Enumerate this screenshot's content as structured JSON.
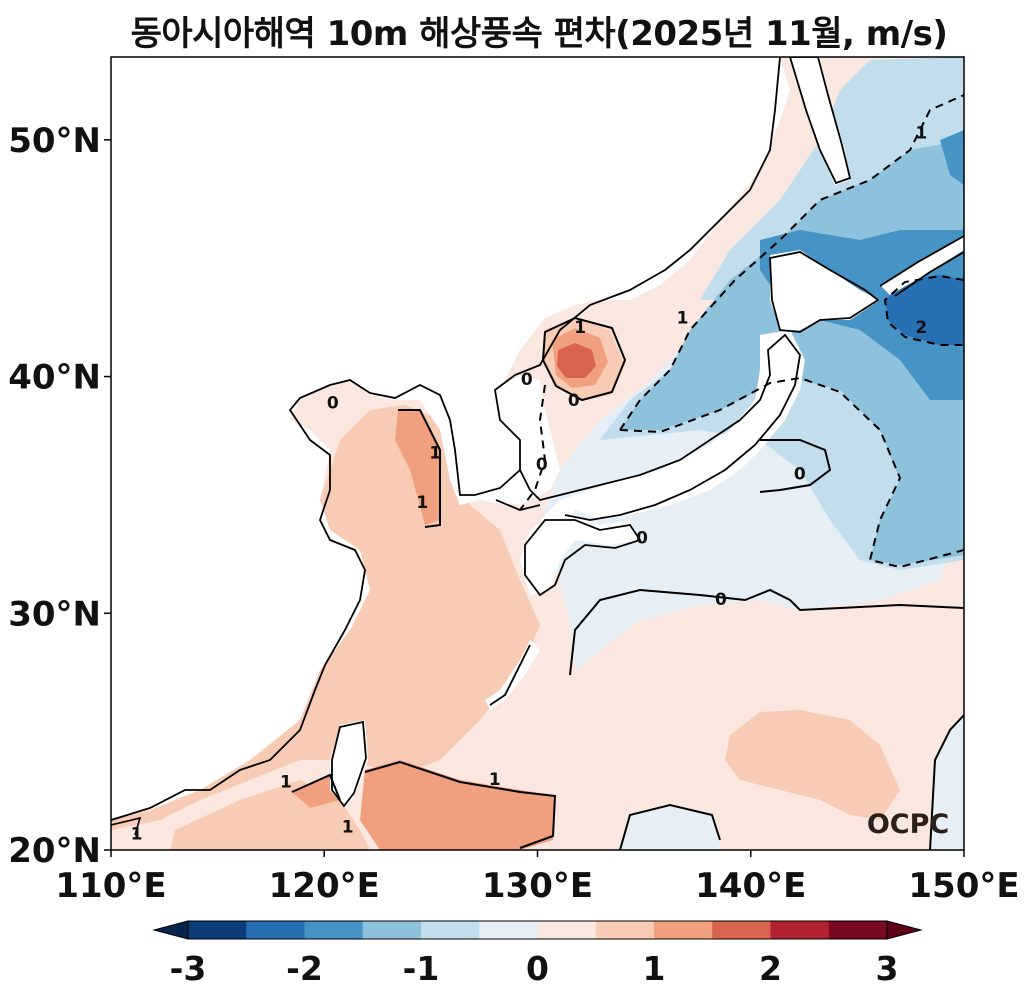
{
  "title": "동아시아해역 10m 해상풍속 편차(2025년 11월, m/s)",
  "map": {
    "lon_range": [
      110,
      150
    ],
    "lat_range": [
      20,
      53.5
    ],
    "lon_ticks": [
      {
        "value": 110,
        "label": "110°E"
      },
      {
        "value": 120,
        "label": "120°E"
      },
      {
        "value": 130,
        "label": "130°E"
      },
      {
        "value": 140,
        "label": "140°E"
      },
      {
        "value": 150,
        "label": "150°E"
      }
    ],
    "lat_ticks": [
      {
        "value": 20,
        "label": "20°N"
      },
      {
        "value": 30,
        "label": "30°N"
      },
      {
        "value": 40,
        "label": "40°N"
      },
      {
        "value": 50,
        "label": "50°N"
      }
    ],
    "contour_labels": [
      {
        "text": "0",
        "lon": 120.4,
        "lat": 38.9
      },
      {
        "text": "1",
        "lon": 125.2,
        "lat": 36.8
      },
      {
        "text": "1",
        "lon": 124.6,
        "lat": 34.7
      },
      {
        "text": "0",
        "lon": 129.5,
        "lat": 39.9
      },
      {
        "text": "1",
        "lon": 132.0,
        "lat": 42.1
      },
      {
        "text": "0",
        "lon": 131.7,
        "lat": 39.0
      },
      {
        "text": "0",
        "lon": 130.2,
        "lat": 36.3
      },
      {
        "text": "1",
        "lon": 136.8,
        "lat": 42.5
      },
      {
        "text": "1",
        "lon": 148.0,
        "lat": 50.3
      },
      {
        "text": "2",
        "lon": 148.0,
        "lat": 42.1
      },
      {
        "text": "0",
        "lon": 142.3,
        "lat": 35.9
      },
      {
        "text": "0",
        "lon": 134.9,
        "lat": 33.2
      },
      {
        "text": "0",
        "lon": 138.6,
        "lat": 30.6
      },
      {
        "text": "1",
        "lon": 128.0,
        "lat": 23.0
      },
      {
        "text": "1",
        "lon": 118.2,
        "lat": 22.9
      },
      {
        "text": "1",
        "lon": 121.1,
        "lat": 21.0
      },
      {
        "text": "1",
        "lon": 111.2,
        "lat": 20.7
      }
    ],
    "watermark": "OCPC"
  },
  "colorbar": {
    "levels": [
      -3,
      -2.5,
      -2,
      -1.5,
      -1,
      -0.5,
      0,
      0.5,
      1,
      1.5,
      2,
      2.5,
      3
    ],
    "colors": [
      "#0b3c78",
      "#2870b4",
      "#4694c6",
      "#8ec1dc",
      "#c2ddec",
      "#e6eff5",
      "#fae8e0",
      "#f8cbb4",
      "#f0a07f",
      "#d8634e",
      "#b3222f",
      "#7a0a21"
    ],
    "under_color": "#06254d",
    "over_color": "#5e0215",
    "tick_labels": [
      {
        "value": -3,
        "label": "-3"
      },
      {
        "value": -2,
        "label": "-2"
      },
      {
        "value": -1,
        "label": "-1"
      },
      {
        "value": 0,
        "label": "0"
      },
      {
        "value": 1,
        "label": "1"
      },
      {
        "value": 2,
        "label": "2"
      },
      {
        "value": 3,
        "label": "3"
      }
    ]
  }
}
